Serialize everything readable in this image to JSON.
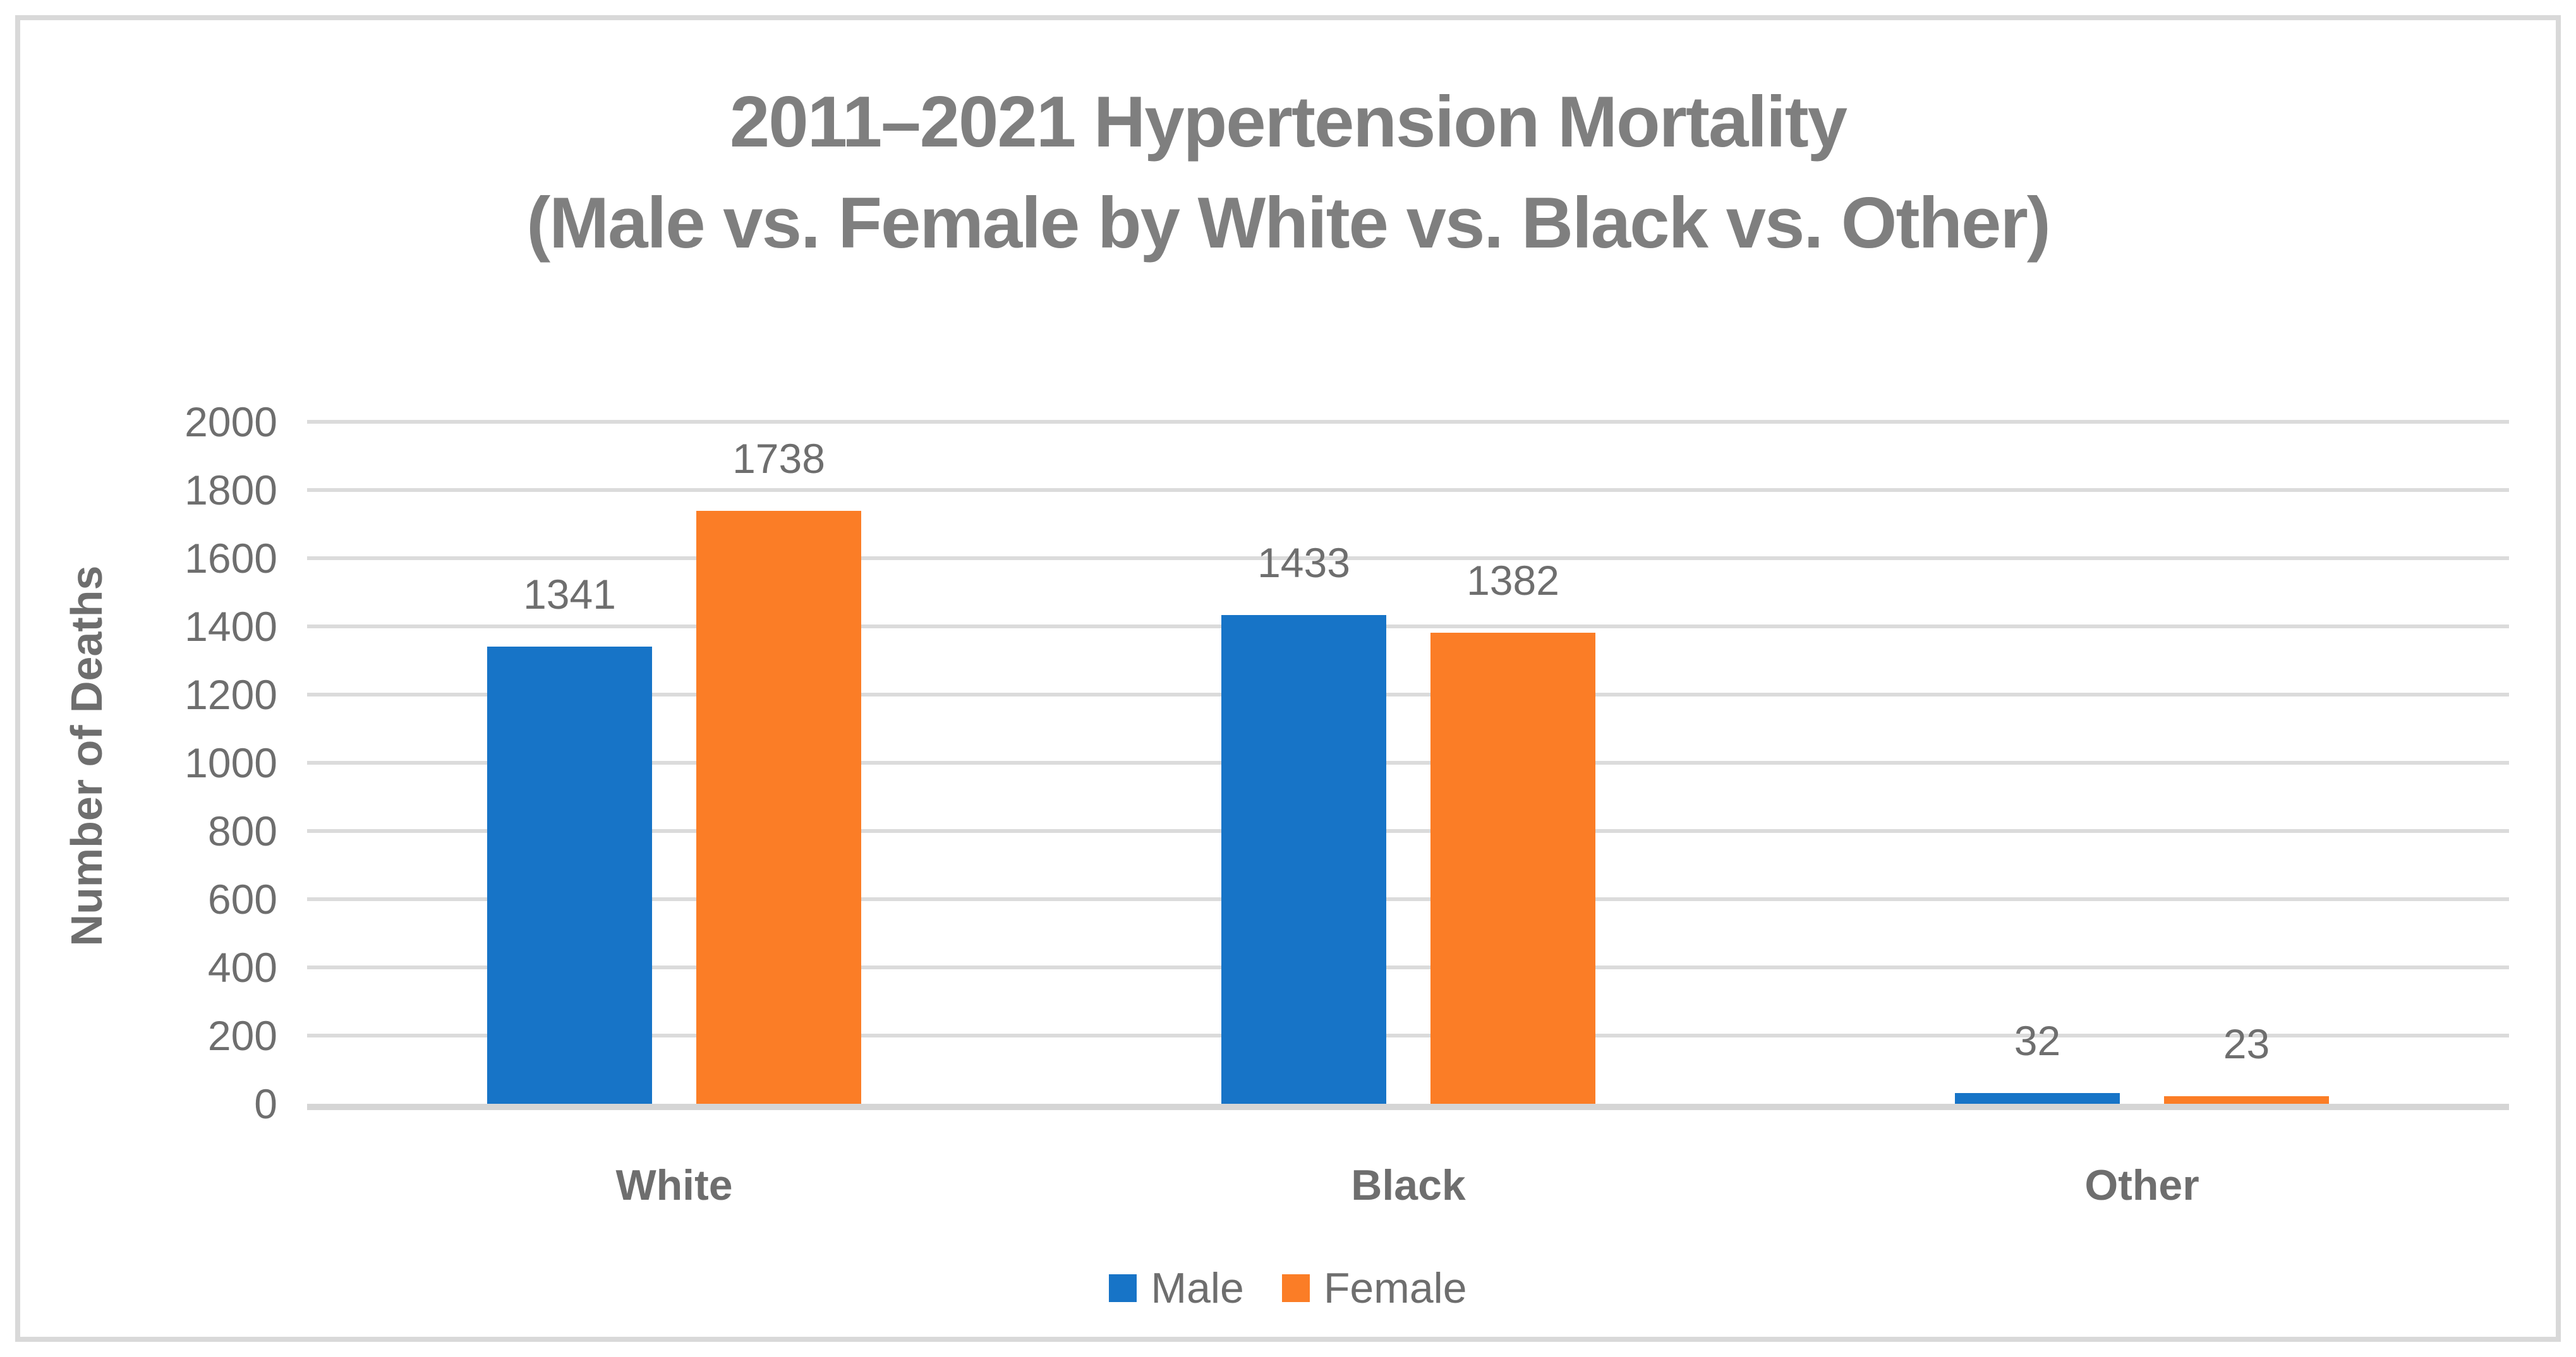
{
  "header": {
    "title_line1": "2011–2021 Hypertension Mortality",
    "title_line2": "(Male vs. Female by White vs. Black vs. Other)"
  },
  "chart_data": {
    "type": "bar",
    "title": "2011–2021 Hypertension Mortality (Male vs. Female by White vs. Black vs. Other)",
    "categories": [
      "White",
      "Black",
      "Other"
    ],
    "series": [
      {
        "name": "Male",
        "color": "#1774C7",
        "values": [
          1341,
          1433,
          32
        ]
      },
      {
        "name": "Female",
        "color": "#FB7D26",
        "values": [
          1738,
          1382,
          23
        ]
      }
    ],
    "xlabel": "",
    "ylabel": "Number of Deaths",
    "ylim": [
      0,
      2000
    ],
    "ytick_step": 200,
    "yticks": [
      0,
      200,
      400,
      600,
      800,
      1000,
      1200,
      1400,
      1600,
      1800,
      2000
    ],
    "grid": "horizontal",
    "legend_position": "bottom",
    "data_labels": true
  },
  "colors": {
    "title_text": "#7F7F7F",
    "axis_text": "#6E6E6E",
    "gridline": "#DBDBDB",
    "zero_line": "#D5D5D5",
    "frame_border": "#D9D9D9",
    "background": "#FFFFFF"
  }
}
